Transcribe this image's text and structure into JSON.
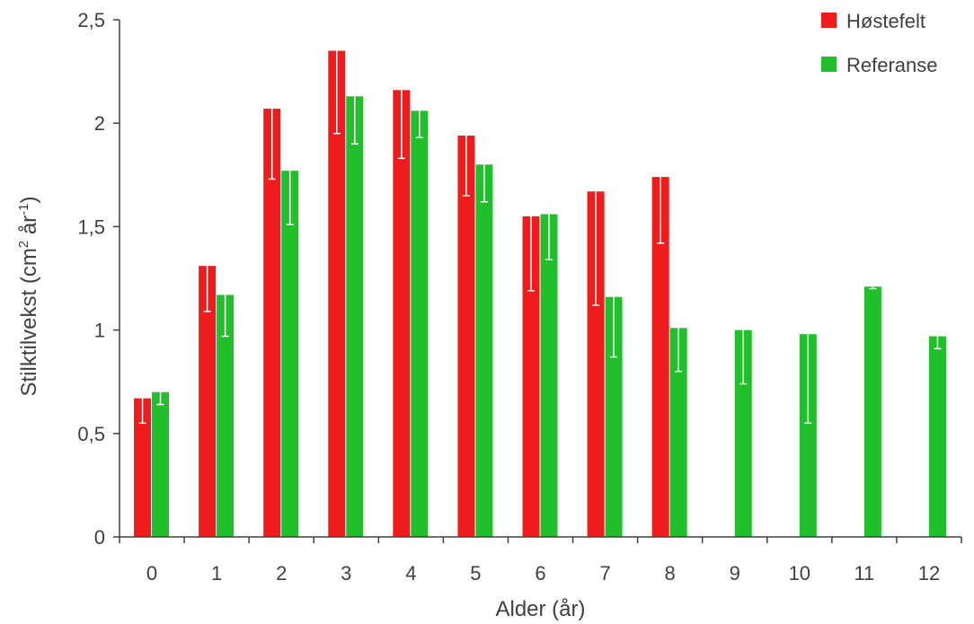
{
  "chart_data": {
    "type": "bar",
    "title": "",
    "xlabel": "Alder (år)",
    "ylabel": {
      "text": "Stilktilvekst (cm",
      "sup1": "2",
      "mid": " år",
      "sup2": "-1",
      "end": ")"
    },
    "categories": [
      "0",
      "1",
      "2",
      "3",
      "4",
      "5",
      "6",
      "7",
      "8",
      "9",
      "10",
      "11",
      "12"
    ],
    "ylim": [
      0,
      2.5
    ],
    "yticks": [
      {
        "value": 0,
        "label": "0"
      },
      {
        "value": 0.5,
        "label": "0,5"
      },
      {
        "value": 1,
        "label": "1"
      },
      {
        "value": 1.5,
        "label": "1,5"
      },
      {
        "value": 2,
        "label": "2"
      },
      {
        "value": 2.5,
        "label": "2,5"
      }
    ],
    "grid": false,
    "legend_position": "top-right",
    "series": [
      {
        "name": "Høstefelt",
        "color": "#ee1c1c",
        "values": [
          0.67,
          1.31,
          2.07,
          2.35,
          2.16,
          1.94,
          1.55,
          1.67,
          1.74,
          null,
          null,
          null,
          null
        ],
        "error_low": [
          0.55,
          1.09,
          1.73,
          1.95,
          1.83,
          1.65,
          1.19,
          1.12,
          1.42,
          null,
          null,
          null,
          null
        ]
      },
      {
        "name": "Referanse",
        "color": "#21bf2c",
        "values": [
          0.7,
          1.17,
          1.77,
          2.13,
          2.06,
          1.8,
          1.56,
          1.16,
          1.01,
          1.0,
          0.98,
          1.21,
          0.97
        ],
        "error_low": [
          0.64,
          0.97,
          1.51,
          1.9,
          1.93,
          1.62,
          1.34,
          0.87,
          0.8,
          0.74,
          0.55,
          1.2,
          0.91
        ]
      }
    ]
  }
}
